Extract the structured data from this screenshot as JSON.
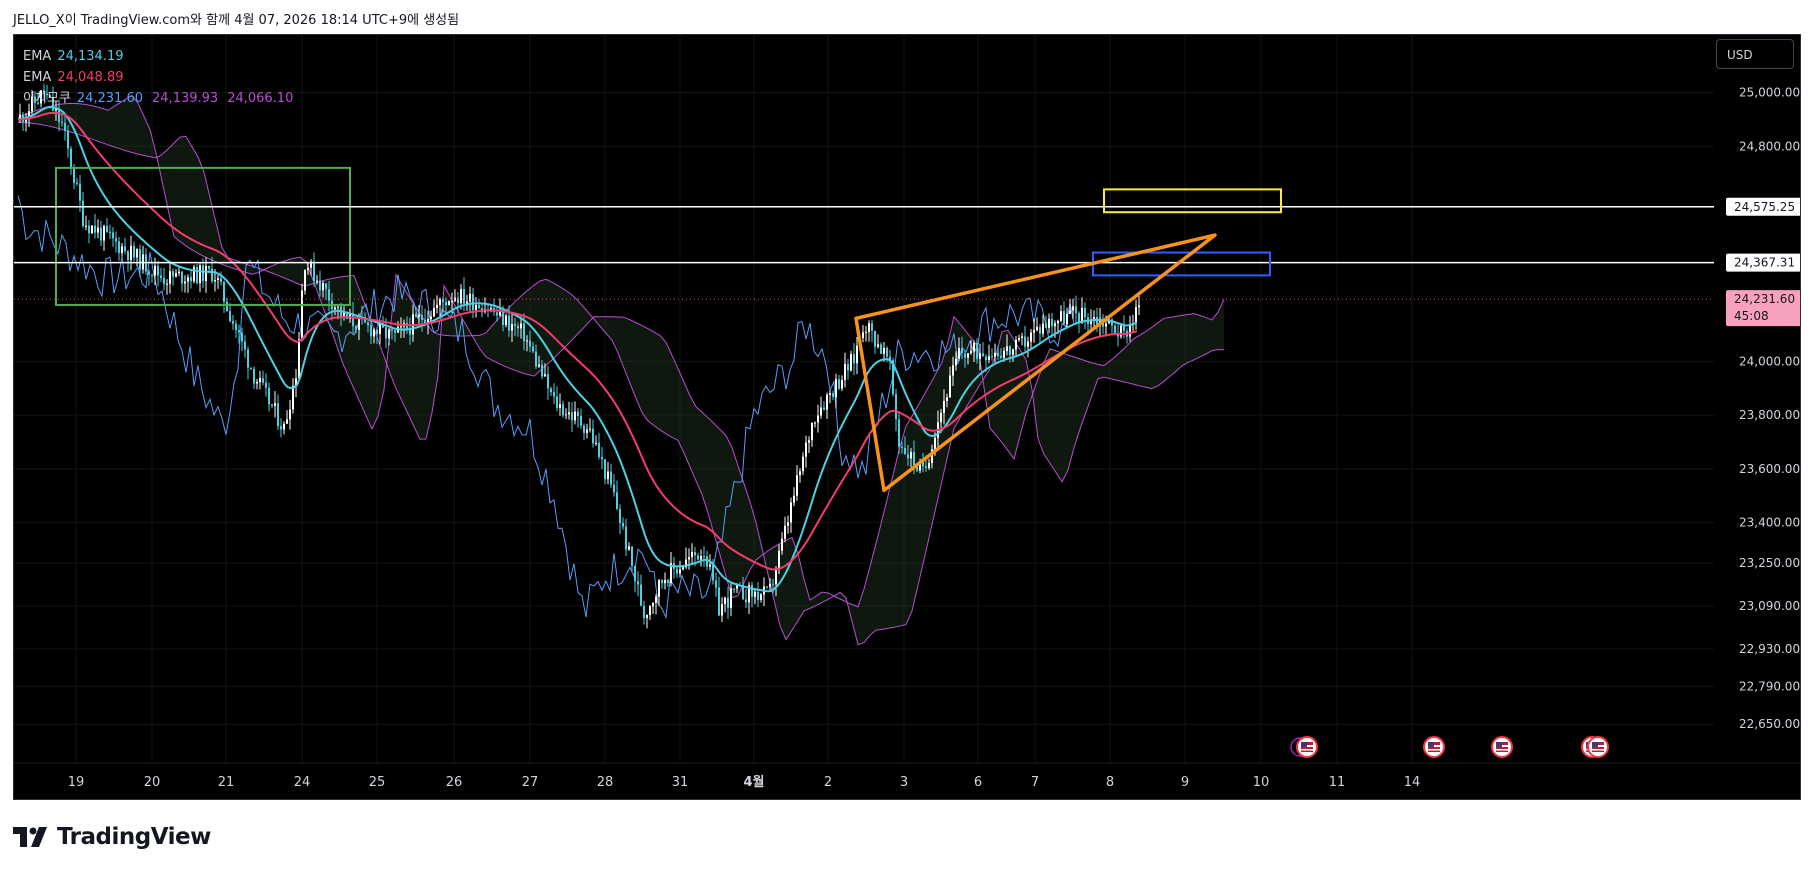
{
  "header": {
    "caption": "JELLO_X이 TradingView.com와 함께 4월 07, 2026 18:14 UTC+9에 생성됨"
  },
  "toolbar": {
    "currency": "USD"
  },
  "legend": {
    "ema1": {
      "label": "EMA",
      "value": "24,134.19",
      "color": "#4dd0e1"
    },
    "ema2": {
      "label": "EMA",
      "value": "24,048.89",
      "color": "#f23c6e"
    },
    "ichimoku": {
      "label": "이치모쿠",
      "values": [
        {
          "text": "24,231.60",
          "color": "#5b9cf6"
        },
        {
          "text": "24,139.93",
          "color": "#b64fd0"
        },
        {
          "text": "24,066.10",
          "color": "#b64fd0"
        }
      ]
    }
  },
  "footer": {
    "brand": "TradingView"
  },
  "chart_data": {
    "type": "line",
    "ylim": [
      22580,
      25140
    ],
    "yaxis_ticks": [
      {
        "value": 25000,
        "label": "25,000.00"
      },
      {
        "value": 24800,
        "label": "24,800.00"
      },
      {
        "value": 24000,
        "label": "24,000.00"
      },
      {
        "value": 23800,
        "label": "23,800.00"
      },
      {
        "value": 23600,
        "label": "23,600.00"
      },
      {
        "value": 23400,
        "label": "23,400.00"
      },
      {
        "value": 23250,
        "label": "23,250.00"
      },
      {
        "value": 23090,
        "label": "23,090.00"
      },
      {
        "value": 22930,
        "label": "22,930.00"
      },
      {
        "value": 22790,
        "label": "22,790.00"
      },
      {
        "value": 22650,
        "label": "22,650.00"
      }
    ],
    "xaxis_labels": [
      "19",
      "20",
      "21",
      "24",
      "25",
      "26",
      "27",
      "28",
      "31",
      "4월",
      "2",
      "3",
      "6",
      "7",
      "8",
      "9",
      "10",
      "11",
      "14"
    ],
    "bold_x_label": "4월",
    "price_levels": [
      {
        "label": "24,575.25",
        "value": 24575.25,
        "color": "#ffffff"
      },
      {
        "label": "24,367.31",
        "value": 24367.31,
        "color": "#ffffff"
      }
    ],
    "last_price": {
      "label": "24,231.60",
      "value": 24231.6,
      "countdown": "45:08",
      "color": "#f7a1bd"
    },
    "colors": {
      "up": "#ffffff",
      "down": "#4dd0e1",
      "ema_fast": "#4dd0e1",
      "ema_slow": "#f23c6e",
      "tenkan": "#5b9cf6",
      "cloud": "#b64fd0",
      "triangle": "#f7931a",
      "green_box": "#4caf50",
      "yellow_box": "#ffeb3b",
      "blue_box": "#2962ff"
    },
    "green_box": {
      "from": "19",
      "to": "24",
      "ymin": 24210,
      "ymax": 24720
    },
    "yellow_box": {
      "from": "8",
      "to": "10",
      "ymin": 24555,
      "ymax": 24640
    },
    "blue_box": {
      "from": "7",
      "to": "10",
      "ymin": 24320,
      "ymax": 24405
    },
    "triangle": [
      {
        "x": "2",
        "y": 24160
      },
      {
        "x": "3",
        "y": 23520
      },
      {
        "x": "9",
        "y": 24470
      }
    ],
    "events_row_icons": [
      "us-flag-icon",
      "us-flag-icon",
      "us-flag-icon",
      "us-flag-icon",
      "us-flag-icon"
    ]
  }
}
